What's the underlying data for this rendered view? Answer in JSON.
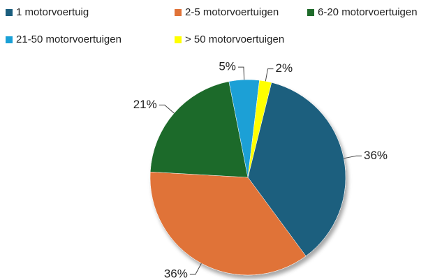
{
  "chart_data": {
    "type": "pie",
    "categories": [
      "1 motorvoertuig",
      "2-5 motorvoertuigen",
      "6-20 motorvoertuigen",
      "21-50 motorvoertuigen",
      "> 50 motorvoertuigen"
    ],
    "values": [
      36,
      36,
      21,
      5,
      2
    ],
    "value_labels": [
      "36%",
      "36%",
      "21%",
      "5%",
      "2%"
    ],
    "colors": [
      "#1b5e7e",
      "#e07338",
      "#1f6b2b",
      "#1aa0d6",
      "#ffff00"
    ],
    "legend": "top"
  }
}
